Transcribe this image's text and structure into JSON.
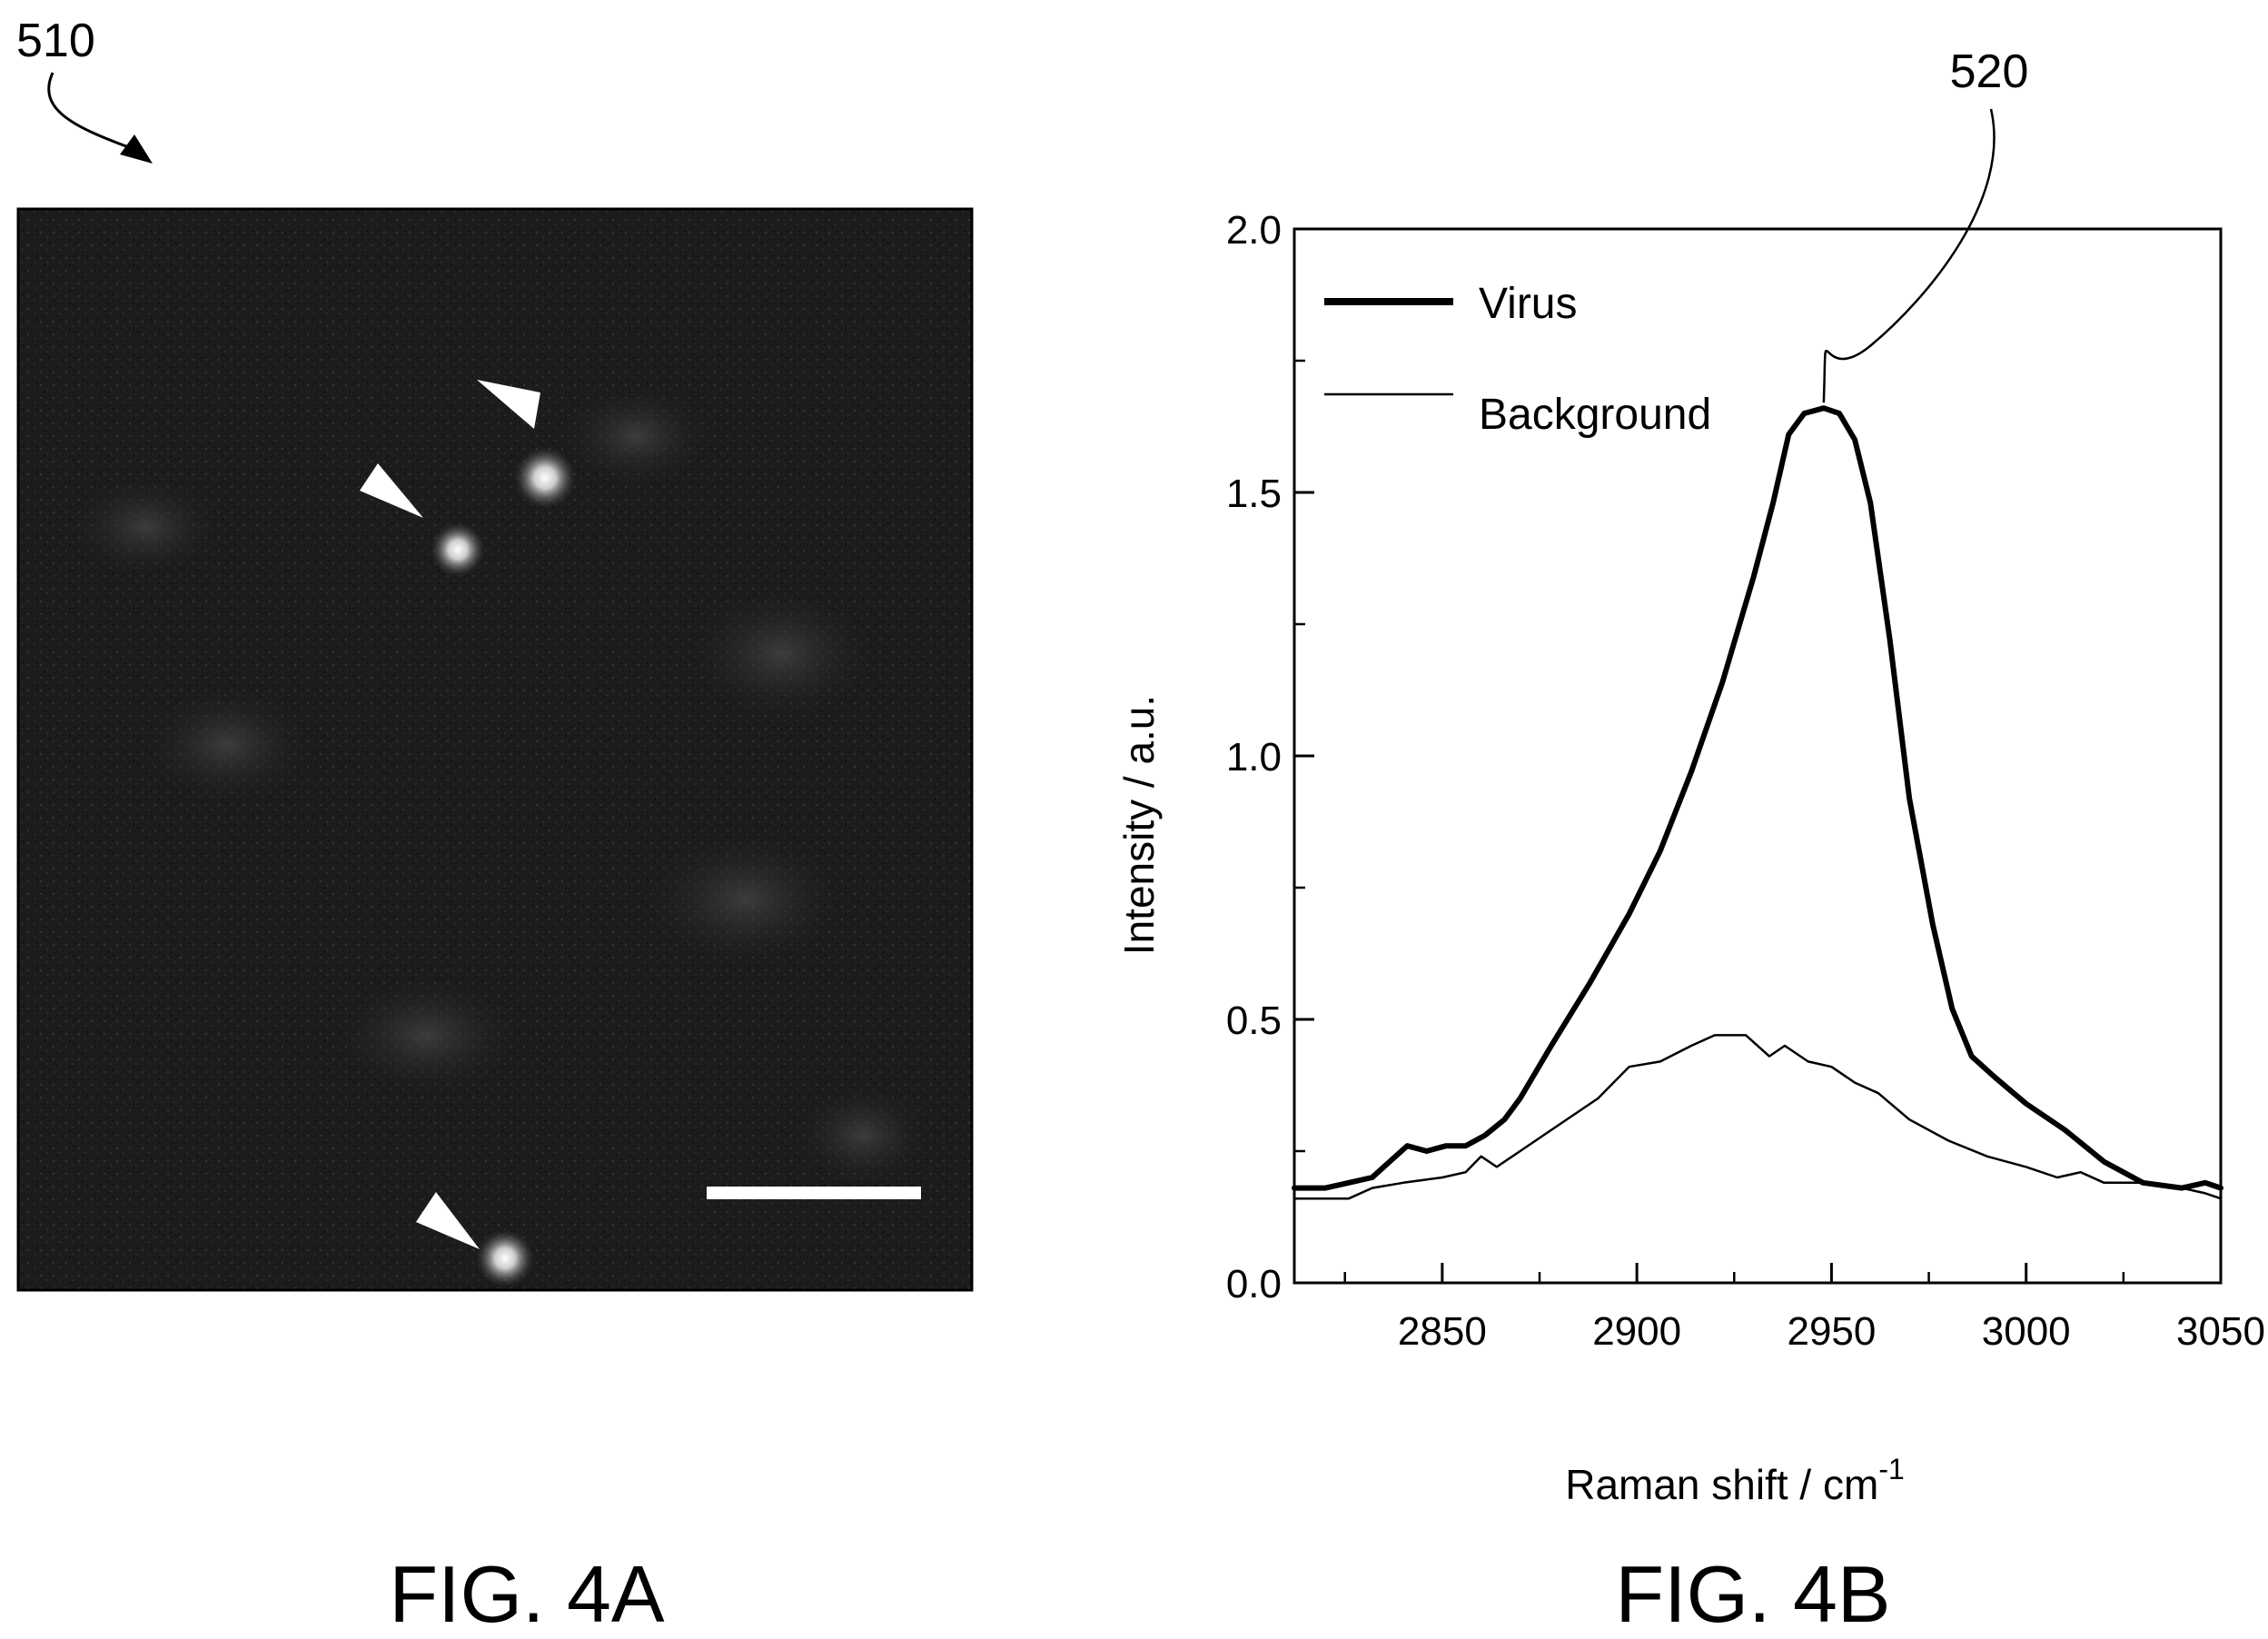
{
  "figures": {
    "left": {
      "ref_label": "510",
      "caption": "FIG. 4A"
    },
    "right": {
      "ref_label": "520",
      "caption": "FIG. 4B"
    }
  },
  "micrograph": {
    "background_color": "#1a1a1a",
    "bright_spots": 3,
    "markers": "arrowheads pointing at bright spots",
    "scale_bar": "white bar (no label printed)"
  },
  "chart_data": {
    "type": "line",
    "title": "",
    "xlabel": "Raman shift / cm",
    "xlabel_superscript": "-1",
    "ylabel": "Intensity / a.u.",
    "xlim": [
      2812,
      3050
    ],
    "ylim": [
      0.0,
      2.0
    ],
    "x_ticks": [
      2850,
      2900,
      2950,
      3000,
      3050
    ],
    "y_ticks": [
      0.0,
      0.5,
      1.0,
      1.5,
      2.0
    ],
    "y_tick_labels": [
      "0.0",
      "0.5",
      "1.0",
      "1.5",
      "2.0"
    ],
    "grid": false,
    "legend_position": "top-left",
    "series": [
      {
        "name": "Virus",
        "style": "thick",
        "color": "#000000",
        "points": [
          [
            2812,
            0.18
          ],
          [
            2820,
            0.18
          ],
          [
            2826,
            0.19
          ],
          [
            2832,
            0.2
          ],
          [
            2838,
            0.24
          ],
          [
            2841,
            0.26
          ],
          [
            2846,
            0.25
          ],
          [
            2851,
            0.26
          ],
          [
            2856,
            0.26
          ],
          [
            2861,
            0.28
          ],
          [
            2866,
            0.31
          ],
          [
            2870,
            0.35
          ],
          [
            2878,
            0.45
          ],
          [
            2888,
            0.57
          ],
          [
            2898,
            0.7
          ],
          [
            2906,
            0.82
          ],
          [
            2914,
            0.97
          ],
          [
            2922,
            1.14
          ],
          [
            2930,
            1.34
          ],
          [
            2935,
            1.48
          ],
          [
            2939,
            1.61
          ],
          [
            2943,
            1.65
          ],
          [
            2948,
            1.66
          ],
          [
            2952,
            1.65
          ],
          [
            2956,
            1.6
          ],
          [
            2960,
            1.48
          ],
          [
            2965,
            1.22
          ],
          [
            2970,
            0.92
          ],
          [
            2976,
            0.68
          ],
          [
            2981,
            0.52
          ],
          [
            2986,
            0.43
          ],
          [
            2992,
            0.39
          ],
          [
            3000,
            0.34
          ],
          [
            3010,
            0.29
          ],
          [
            3020,
            0.23
          ],
          [
            3030,
            0.19
          ],
          [
            3040,
            0.18
          ],
          [
            3046,
            0.19
          ],
          [
            3050,
            0.18
          ]
        ]
      },
      {
        "name": "Background",
        "style": "thin",
        "color": "#000000",
        "points": [
          [
            2812,
            0.16
          ],
          [
            2820,
            0.16
          ],
          [
            2826,
            0.16
          ],
          [
            2832,
            0.18
          ],
          [
            2840,
            0.19
          ],
          [
            2850,
            0.2
          ],
          [
            2856,
            0.21
          ],
          [
            2860,
            0.24
          ],
          [
            2864,
            0.22
          ],
          [
            2870,
            0.25
          ],
          [
            2880,
            0.3
          ],
          [
            2890,
            0.35
          ],
          [
            2898,
            0.41
          ],
          [
            2906,
            0.42
          ],
          [
            2914,
            0.45
          ],
          [
            2920,
            0.47
          ],
          [
            2928,
            0.47
          ],
          [
            2934,
            0.43
          ],
          [
            2938,
            0.45
          ],
          [
            2944,
            0.42
          ],
          [
            2950,
            0.41
          ],
          [
            2956,
            0.38
          ],
          [
            2962,
            0.36
          ],
          [
            2970,
            0.31
          ],
          [
            2980,
            0.27
          ],
          [
            2990,
            0.24
          ],
          [
            3000,
            0.22
          ],
          [
            3008,
            0.2
          ],
          [
            3014,
            0.21
          ],
          [
            3020,
            0.19
          ],
          [
            3030,
            0.19
          ],
          [
            3040,
            0.18
          ],
          [
            3046,
            0.17
          ],
          [
            3050,
            0.16
          ]
        ]
      }
    ]
  }
}
